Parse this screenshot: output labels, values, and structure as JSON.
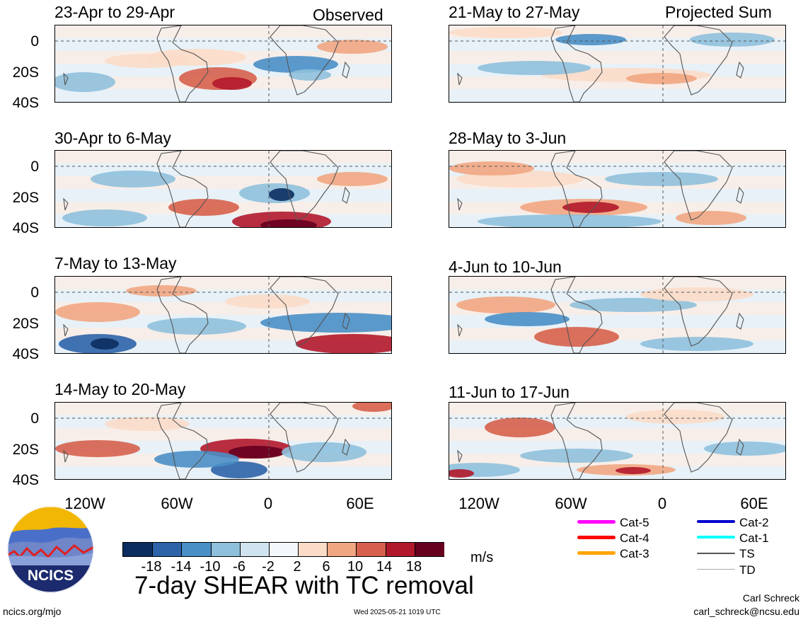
{
  "observed_label": "Observed",
  "projected_label": "Projected Sum",
  "panels_left": [
    {
      "title": "23-Apr to 29-Apr"
    },
    {
      "title": "30-Apr to 6-May"
    },
    {
      "title": "7-May to 13-May"
    },
    {
      "title": "14-May to 20-May"
    }
  ],
  "panels_right": [
    {
      "title": "21-May to 27-May"
    },
    {
      "title": "28-May to 3-Jun"
    },
    {
      "title": "4-Jun to 10-Jun"
    },
    {
      "title": "11-Jun to 17-Jun"
    }
  ],
  "y_ticks": [
    "0",
    "20S",
    "40S"
  ],
  "x_ticks": [
    "120W",
    "60W",
    "0",
    "60E"
  ],
  "colorbar": {
    "colors": [
      "#0b2d5f",
      "#2d63a8",
      "#4a8fc6",
      "#8fc0db",
      "#cfe4f0",
      "#f4f8fb",
      "#fbdcc8",
      "#f1a682",
      "#d6604d",
      "#b2182b",
      "#67001f"
    ],
    "ticks": [
      "-18",
      "-14",
      "-10",
      "-6",
      "-2",
      "2",
      "6",
      "10",
      "14",
      "18"
    ],
    "units": "m/s"
  },
  "legend": [
    {
      "label": "Cat-5",
      "color": "#ff00ff"
    },
    {
      "label": "Cat-4",
      "color": "#ff0000"
    },
    {
      "label": "Cat-3",
      "color": "#ffa500"
    },
    {
      "label": "Cat-2",
      "color": "#0000cc"
    },
    {
      "label": "Cat-1",
      "color": "#00ffff"
    },
    {
      "label": "TS",
      "color": "#555555"
    },
    {
      "label": "TD",
      "color": "#aaaaaa"
    }
  ],
  "logo_text": "NCICS",
  "main_title": "7-day SHEAR with TC removal",
  "footer": {
    "url": "ncics.org/mjo",
    "timestamp": "Wed 2025-05-21 1019 UTC",
    "author": "Carl Schreck",
    "email": "carl_schreck@ncsu.edu"
  }
}
